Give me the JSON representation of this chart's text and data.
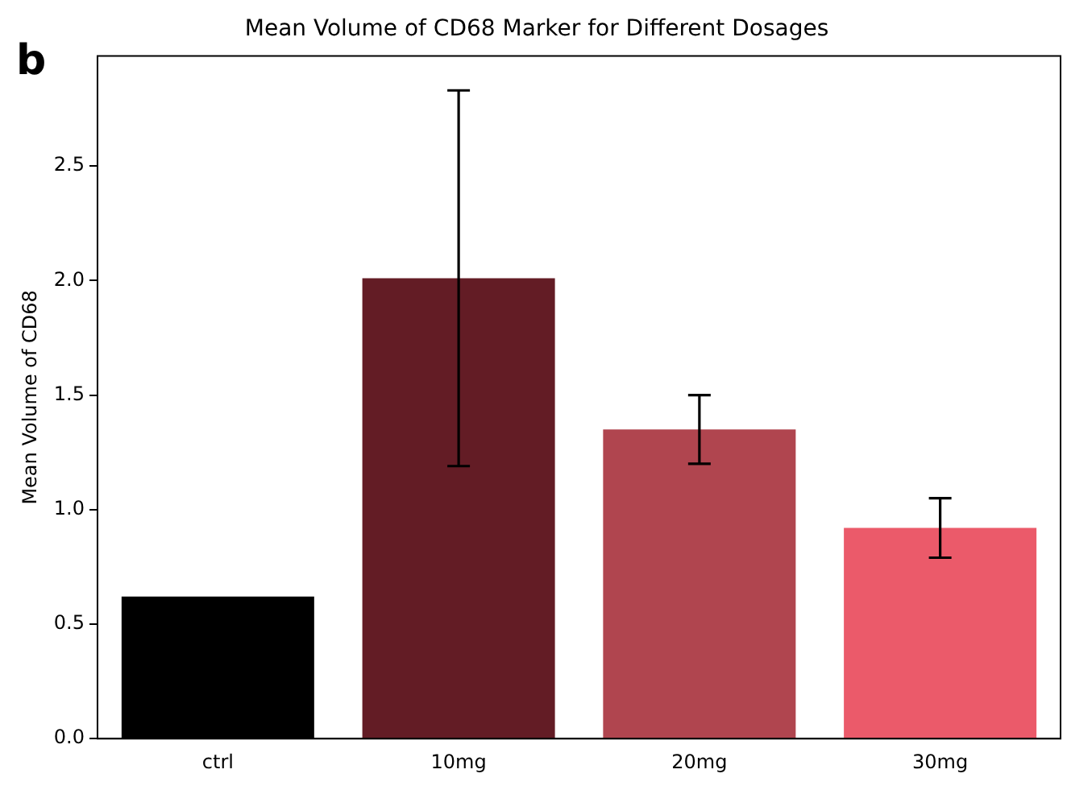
{
  "chart_data": {
    "type": "bar",
    "title": "Mean Volume of CD68 Marker for Different Dosages",
    "ylabel": "Mean Volume of CD68",
    "annotations": [
      "b"
    ],
    "categories": [
      "ctrl",
      "10mg",
      "20mg",
      "30mg"
    ],
    "values": [
      0.62,
      2.01,
      1.35,
      0.92
    ],
    "colors": [
      "#000000",
      "#631c25",
      "#b0454f",
      "#eb5a6a"
    ],
    "errors": [
      null,
      0.82,
      0.15,
      0.13
    ],
    "ylim": [
      0,
      2.98
    ],
    "yticks": [
      {
        "value": 0,
        "label": "0.0"
      },
      0.5,
      {
        "value": 1,
        "label": "1.0"
      },
      1.5,
      {
        "value": 2,
        "label": "2.0"
      },
      2.5
    ],
    "grid": false,
    "legend": false
  }
}
